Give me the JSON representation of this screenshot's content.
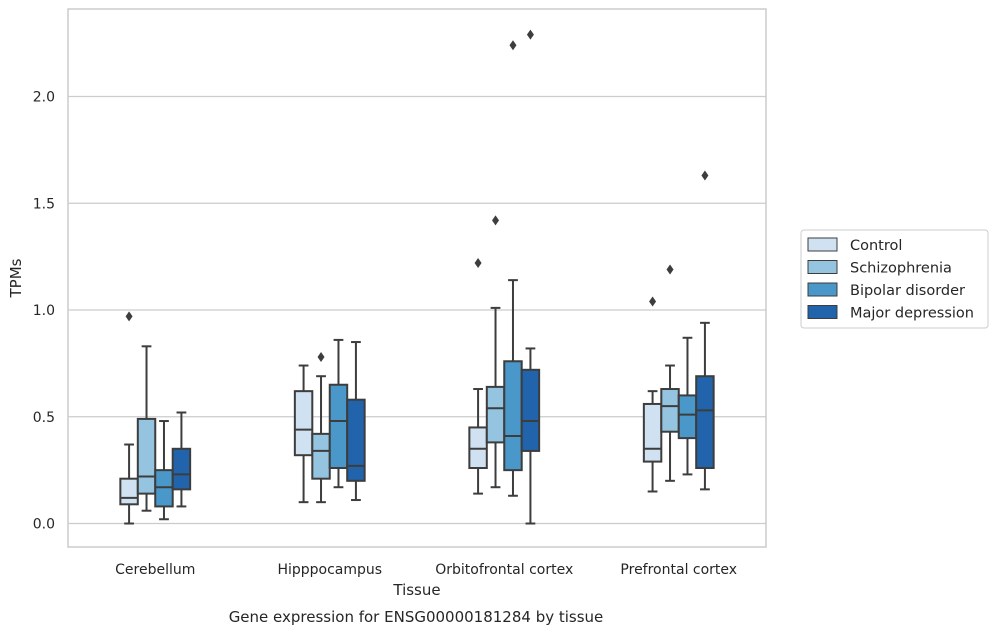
{
  "chart_data": {
    "type": "box",
    "caption": "Gene expression for ENSG00000181284 by tissue",
    "xlabel": "Tissue",
    "ylabel": "TPMs",
    "ylim": [
      -0.11,
      2.41
    ],
    "yticks": [
      "0.0",
      "0.5",
      "1.0",
      "1.5",
      "2.0"
    ],
    "ytick_values": [
      0.0,
      0.5,
      1.0,
      1.5,
      2.0
    ],
    "grid": "horizontal",
    "legend_position": "right",
    "categories": [
      "Cerebellum",
      "Hipppocampus",
      "Orbitofrontal cortex",
      "Prefrontal cortex"
    ],
    "series": [
      {
        "name": "Control",
        "color": "#d0e1f2",
        "boxes": [
          {
            "whislo": 0.0,
            "q1": 0.09,
            "med": 0.12,
            "q3": 0.21,
            "whishi": 0.37,
            "fliers": [
              0.97
            ]
          },
          {
            "whislo": 0.1,
            "q1": 0.32,
            "med": 0.44,
            "q3": 0.62,
            "whishi": 0.74,
            "fliers": []
          },
          {
            "whislo": 0.14,
            "q1": 0.26,
            "med": 0.35,
            "q3": 0.45,
            "whishi": 0.63,
            "fliers": [
              1.22
            ]
          },
          {
            "whislo": 0.15,
            "q1": 0.29,
            "med": 0.35,
            "q3": 0.56,
            "whishi": 0.62,
            "fliers": [
              1.04
            ]
          }
        ]
      },
      {
        "name": "Schizophrenia",
        "color": "#94c4df",
        "boxes": [
          {
            "whislo": 0.06,
            "q1": 0.14,
            "med": 0.22,
            "q3": 0.49,
            "whishi": 0.83,
            "fliers": []
          },
          {
            "whislo": 0.1,
            "q1": 0.21,
            "med": 0.34,
            "q3": 0.42,
            "whishi": 0.69,
            "fliers": [
              0.78
            ]
          },
          {
            "whislo": 0.17,
            "q1": 0.38,
            "med": 0.54,
            "q3": 0.64,
            "whishi": 1.01,
            "fliers": [
              1.42
            ]
          },
          {
            "whislo": 0.2,
            "q1": 0.43,
            "med": 0.55,
            "q3": 0.63,
            "whishi": 0.74,
            "fliers": [
              1.19
            ]
          }
        ]
      },
      {
        "name": "Bipolar disorder",
        "color": "#4a98c9",
        "boxes": [
          {
            "whislo": 0.02,
            "q1": 0.08,
            "med": 0.17,
            "q3": 0.25,
            "whishi": 0.48,
            "fliers": []
          },
          {
            "whislo": 0.17,
            "q1": 0.26,
            "med": 0.48,
            "q3": 0.65,
            "whishi": 0.86,
            "fliers": []
          },
          {
            "whislo": 0.13,
            "q1": 0.25,
            "med": 0.41,
            "q3": 0.76,
            "whishi": 1.14,
            "fliers": [
              2.24
            ]
          },
          {
            "whislo": 0.23,
            "q1": 0.4,
            "med": 0.51,
            "q3": 0.6,
            "whishi": 0.87,
            "fliers": []
          }
        ]
      },
      {
        "name": "Major depression",
        "color": "#2164ab",
        "boxes": [
          {
            "whislo": 0.08,
            "q1": 0.16,
            "med": 0.23,
            "q3": 0.35,
            "whishi": 0.52,
            "fliers": []
          },
          {
            "whislo": 0.11,
            "q1": 0.2,
            "med": 0.27,
            "q3": 0.58,
            "whishi": 0.85,
            "fliers": []
          },
          {
            "whislo": 0.0,
            "q1": 0.34,
            "med": 0.48,
            "q3": 0.72,
            "whishi": 0.82,
            "fliers": [
              2.29
            ]
          },
          {
            "whislo": 0.16,
            "q1": 0.26,
            "med": 0.53,
            "q3": 0.69,
            "whishi": 0.94,
            "fliers": [
              1.63
            ]
          }
        ]
      }
    ]
  }
}
